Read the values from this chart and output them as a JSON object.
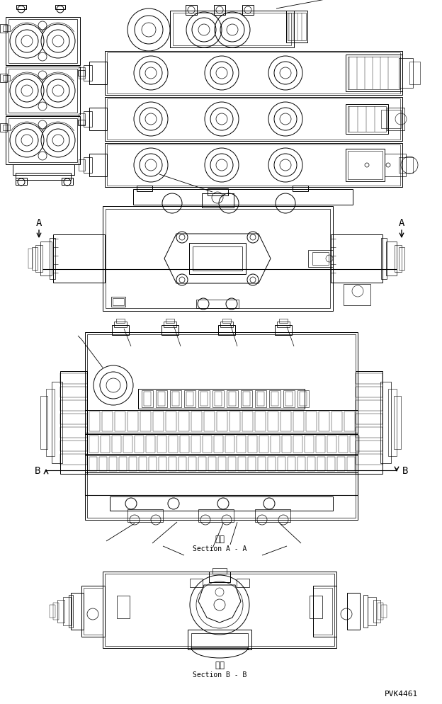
{
  "bg_color": "#ffffff",
  "line_color": "#000000",
  "lw": 0.7,
  "figsize": [
    6.24,
    9.95
  ],
  "dpi": 100,
  "section_aa_cn": "断面",
  "section_aa_en": "Section A - A",
  "section_bb_cn": "断面",
  "section_bb_en": "Section B - B",
  "label_A": "A",
  "label_B": "B",
  "part_number": "PVK4461"
}
